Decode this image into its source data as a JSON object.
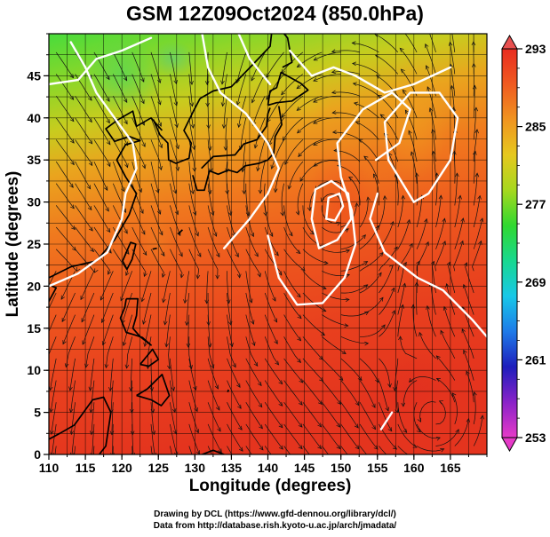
{
  "title": "GSM 12Z09Oct2024 (850.0hPa)",
  "x_axis": {
    "label": "Longitude (degrees)",
    "range": [
      110,
      170
    ],
    "ticks": [
      "110",
      "115",
      "120",
      "125",
      "130",
      "135",
      "140",
      "145",
      "150",
      "155",
      "160",
      "165"
    ]
  },
  "y_axis": {
    "label": "Latitude  (degrees)",
    "range": [
      0,
      50
    ],
    "ticks": [
      "0",
      "5",
      "10",
      "15",
      "20",
      "25",
      "30",
      "35",
      "40",
      "45"
    ]
  },
  "colorbar": {
    "range": [
      253,
      293
    ],
    "ticks": [
      "253",
      "261",
      "269",
      "277",
      "285",
      "293"
    ],
    "colors": [
      "#e63ac8",
      "#8a22c8",
      "#1e1ebc",
      "#1e7ae8",
      "#18c8e8",
      "#18d890",
      "#30d830",
      "#a6d81e",
      "#e6c81e",
      "#f09420",
      "#f05a20",
      "#e82c20"
    ]
  },
  "credits": {
    "line1": "Drawing by DCL (https://www.gfd-dennou.org/library/dcl/)",
    "line2": "Data from http://database.rish.kyoto-u.ac.jp/arch/jmadata/"
  },
  "field": {
    "variable": "temperature (K) with wind streamlines",
    "grid_step_deg": 2.5,
    "low_center": {
      "lon": 149,
      "lat": 29.5
    },
    "contours_white": true
  }
}
